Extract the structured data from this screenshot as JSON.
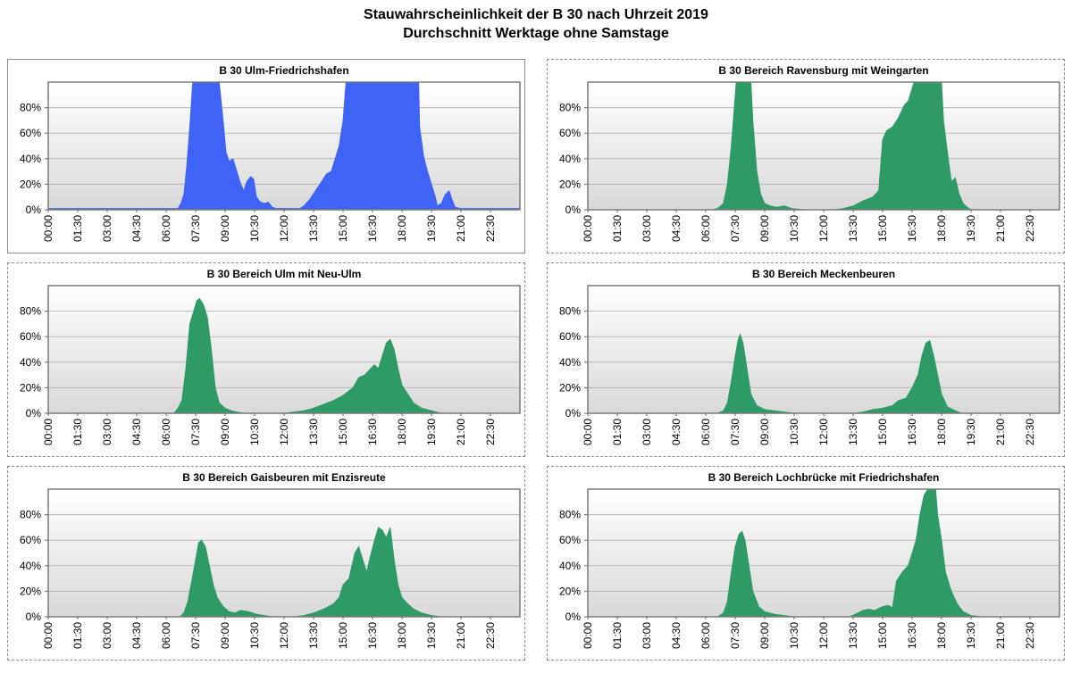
{
  "title": [
    "Stauwahrscheinlichkeit der B 30 nach Uhrzeit 2019",
    "Durchschnitt Werktage ohne Samstage"
  ],
  "colors": {
    "blue": "#3f63f5",
    "green": "#2e9a66"
  },
  "chart_data": [
    {
      "type": "area",
      "title": "B 30 Ulm-Friedrichshafen",
      "color": "#3f63f5",
      "x_ticks": [
        "00:00",
        "01:30",
        "03:00",
        "04:30",
        "06:00",
        "07:30",
        "09:00",
        "10:30",
        "12:00",
        "13:30",
        "15:00",
        "16:30",
        "18:00",
        "19:30",
        "21:00",
        "22:30"
      ],
      "y_ticks": [
        "0%",
        "20%",
        "40%",
        "60%",
        "80%"
      ],
      "x_unit": "hour",
      "xlim": [
        0,
        24
      ],
      "ylim": [
        0,
        100
      ],
      "grid": true,
      "points": [
        [
          0,
          1
        ],
        [
          1,
          1
        ],
        [
          2,
          1
        ],
        [
          3,
          1
        ],
        [
          4,
          1
        ],
        [
          5,
          1
        ],
        [
          6,
          1
        ],
        [
          6.6,
          1
        ],
        [
          6.75,
          5
        ],
        [
          6.9,
          12
        ],
        [
          7.05,
          35
        ],
        [
          7.2,
          65
        ],
        [
          7.35,
          100
        ],
        [
          8.7,
          100
        ],
        [
          8.9,
          70
        ],
        [
          9.05,
          45
        ],
        [
          9.2,
          38
        ],
        [
          9.4,
          40
        ],
        [
          9.6,
          30
        ],
        [
          9.8,
          20
        ],
        [
          9.95,
          15
        ],
        [
          10.1,
          22
        ],
        [
          10.3,
          26
        ],
        [
          10.45,
          24
        ],
        [
          10.6,
          10
        ],
        [
          10.8,
          6
        ],
        [
          11,
          5
        ],
        [
          11.2,
          6
        ],
        [
          11.4,
          2
        ],
        [
          11.6,
          1
        ],
        [
          12,
          1
        ],
        [
          12.8,
          1
        ],
        [
          13.0,
          3
        ],
        [
          13.3,
          8
        ],
        [
          13.6,
          15
        ],
        [
          13.9,
          22
        ],
        [
          14.15,
          28
        ],
        [
          14.4,
          30
        ],
        [
          14.6,
          40
        ],
        [
          14.8,
          50
        ],
        [
          15.0,
          70
        ],
        [
          15.15,
          100
        ],
        [
          18.85,
          100
        ],
        [
          18.9,
          65
        ],
        [
          19.1,
          42
        ],
        [
          19.3,
          30
        ],
        [
          19.5,
          20
        ],
        [
          19.7,
          10
        ],
        [
          19.8,
          3
        ],
        [
          20,
          5
        ],
        [
          20.2,
          12
        ],
        [
          20.4,
          15
        ],
        [
          20.55,
          8
        ],
        [
          20.7,
          2
        ],
        [
          21,
          1
        ],
        [
          22,
          1
        ],
        [
          23,
          1
        ],
        [
          24,
          1
        ]
      ]
    },
    {
      "type": "area",
      "title": "B 30 Bereich Ravensburg mit Weingarten",
      "color": "#2e9a66",
      "x_ticks": [
        "00:00",
        "01:30",
        "03:00",
        "04:30",
        "06:00",
        "07:30",
        "09:00",
        "10:30",
        "12:00",
        "13:30",
        "15:00",
        "16:30",
        "18:00",
        "19:30",
        "21:00",
        "22:30"
      ],
      "y_ticks": [
        "0%",
        "20%",
        "40%",
        "60%",
        "80%"
      ],
      "x_unit": "hour",
      "xlim": [
        0,
        24
      ],
      "ylim": [
        0,
        100
      ],
      "grid": true,
      "points": [
        [
          0,
          0
        ],
        [
          6.3,
          0
        ],
        [
          6.6,
          1
        ],
        [
          6.9,
          5
        ],
        [
          7.1,
          20
        ],
        [
          7.3,
          50
        ],
        [
          7.45,
          80
        ],
        [
          7.55,
          100
        ],
        [
          8.3,
          100
        ],
        [
          8.4,
          70
        ],
        [
          8.6,
          30
        ],
        [
          8.8,
          12
        ],
        [
          9.0,
          5
        ],
        [
          9.3,
          3
        ],
        [
          9.6,
          2
        ],
        [
          10.0,
          3
        ],
        [
          10.4,
          1
        ],
        [
          11,
          0
        ],
        [
          12.5,
          0
        ],
        [
          13.0,
          1
        ],
        [
          13.5,
          3
        ],
        [
          14,
          7
        ],
        [
          14.5,
          10
        ],
        [
          14.8,
          15
        ],
        [
          15.0,
          55
        ],
        [
          15.2,
          62
        ],
        [
          15.5,
          65
        ],
        [
          15.8,
          72
        ],
        [
          16.1,
          82
        ],
        [
          16.3,
          85
        ],
        [
          16.5,
          95
        ],
        [
          16.6,
          100
        ],
        [
          18.0,
          100
        ],
        [
          18.1,
          70
        ],
        [
          18.3,
          45
        ],
        [
          18.5,
          22
        ],
        [
          18.7,
          25
        ],
        [
          18.9,
          12
        ],
        [
          19.1,
          5
        ],
        [
          19.3,
          2
        ],
        [
          19.5,
          0
        ],
        [
          24,
          0
        ]
      ]
    },
    {
      "type": "area",
      "title": "B 30 Bereich Ulm mit Neu-Ulm",
      "color": "#2e9a66",
      "x_ticks": [
        "00:00",
        "01:30",
        "03:00",
        "04:30",
        "06:00",
        "07:30",
        "09:00",
        "10:30",
        "12:00",
        "13:30",
        "15:00",
        "16:30",
        "18:00",
        "19:30",
        "21:00",
        "22:30"
      ],
      "y_ticks": [
        "0%",
        "20%",
        "40%",
        "60%",
        "80%"
      ],
      "x_unit": "hour",
      "xlim": [
        0,
        24
      ],
      "ylim": [
        0,
        100
      ],
      "grid": true,
      "points": [
        [
          0,
          0
        ],
        [
          6.4,
          0
        ],
        [
          6.6,
          4
        ],
        [
          6.8,
          10
        ],
        [
          7.0,
          35
        ],
        [
          7.2,
          70
        ],
        [
          7.4,
          80
        ],
        [
          7.55,
          88
        ],
        [
          7.7,
          90
        ],
        [
          7.9,
          85
        ],
        [
          8.1,
          75
        ],
        [
          8.3,
          50
        ],
        [
          8.5,
          20
        ],
        [
          8.7,
          8
        ],
        [
          9.0,
          4
        ],
        [
          9.3,
          2
        ],
        [
          9.6,
          1
        ],
        [
          10,
          0
        ],
        [
          12,
          0
        ],
        [
          12.5,
          1
        ],
        [
          13,
          2
        ],
        [
          13.5,
          4
        ],
        [
          14,
          7
        ],
        [
          14.5,
          10
        ],
        [
          15,
          14
        ],
        [
          15.5,
          20
        ],
        [
          15.8,
          28
        ],
        [
          16.1,
          30
        ],
        [
          16.4,
          35
        ],
        [
          16.6,
          38
        ],
        [
          16.8,
          35
        ],
        [
          17.0,
          45
        ],
        [
          17.2,
          55
        ],
        [
          17.4,
          58
        ],
        [
          17.6,
          50
        ],
        [
          17.8,
          35
        ],
        [
          18,
          22
        ],
        [
          18.3,
          15
        ],
        [
          18.6,
          8
        ],
        [
          19,
          4
        ],
        [
          19.5,
          2
        ],
        [
          20,
          0
        ],
        [
          24,
          0
        ]
      ]
    },
    {
      "type": "area",
      "title": "B 30 Bereich Meckenbeuren",
      "color": "#2e9a66",
      "x_ticks": [
        "00:00",
        "01:30",
        "03:00",
        "04:30",
        "06:00",
        "07:30",
        "09:00",
        "10:30",
        "12:00",
        "13:30",
        "15:00",
        "16:30",
        "18:00",
        "19:30",
        "21:00",
        "22:30"
      ],
      "y_ticks": [
        "0%",
        "20%",
        "40%",
        "60%",
        "80%"
      ],
      "x_unit": "hour",
      "xlim": [
        0,
        24
      ],
      "ylim": [
        0,
        100
      ],
      "grid": true,
      "points": [
        [
          0,
          0
        ],
        [
          6.6,
          0
        ],
        [
          6.9,
          2
        ],
        [
          7.1,
          8
        ],
        [
          7.3,
          25
        ],
        [
          7.5,
          45
        ],
        [
          7.65,
          58
        ],
        [
          7.75,
          62
        ],
        [
          7.9,
          55
        ],
        [
          8.1,
          35
        ],
        [
          8.3,
          15
        ],
        [
          8.6,
          6
        ],
        [
          9,
          3
        ],
        [
          9.5,
          2
        ],
        [
          10,
          1
        ],
        [
          10.5,
          0
        ],
        [
          13.5,
          0
        ],
        [
          14,
          1
        ],
        [
          14.5,
          3
        ],
        [
          15,
          4
        ],
        [
          15.5,
          6
        ],
        [
          15.8,
          10
        ],
        [
          16.2,
          12
        ],
        [
          16.5,
          20
        ],
        [
          16.8,
          30
        ],
        [
          17.0,
          45
        ],
        [
          17.2,
          55
        ],
        [
          17.4,
          57
        ],
        [
          17.6,
          45
        ],
        [
          17.8,
          30
        ],
        [
          18,
          15
        ],
        [
          18.3,
          5
        ],
        [
          18.7,
          2
        ],
        [
          19,
          0
        ],
        [
          24,
          0
        ]
      ]
    },
    {
      "type": "area",
      "title": "B 30 Bereich Gaisbeuren mit Enzisreute",
      "color": "#2e9a66",
      "x_ticks": [
        "00:00",
        "01:30",
        "03:00",
        "04:30",
        "06:00",
        "07:30",
        "09:00",
        "10:30",
        "12:00",
        "13:30",
        "15:00",
        "16:30",
        "18:00",
        "19:30",
        "21:00",
        "22:30"
      ],
      "y_ticks": [
        "0%",
        "20%",
        "40%",
        "60%",
        "80%"
      ],
      "x_unit": "hour",
      "xlim": [
        0,
        24
      ],
      "ylim": [
        0,
        100
      ],
      "grid": true,
      "points": [
        [
          0,
          0
        ],
        [
          6.7,
          0
        ],
        [
          6.9,
          3
        ],
        [
          7.1,
          12
        ],
        [
          7.3,
          28
        ],
        [
          7.5,
          45
        ],
        [
          7.65,
          58
        ],
        [
          7.8,
          60
        ],
        [
          8.0,
          55
        ],
        [
          8.2,
          40
        ],
        [
          8.4,
          25
        ],
        [
          8.6,
          15
        ],
        [
          8.9,
          8
        ],
        [
          9.2,
          4
        ],
        [
          9.5,
          3
        ],
        [
          9.8,
          5
        ],
        [
          10.2,
          4
        ],
        [
          10.6,
          2
        ],
        [
          11,
          1
        ],
        [
          11.5,
          0
        ],
        [
          12.5,
          0
        ],
        [
          13,
          1
        ],
        [
          13.5,
          3
        ],
        [
          14,
          6
        ],
        [
          14.5,
          10
        ],
        [
          14.8,
          15
        ],
        [
          15.0,
          25
        ],
        [
          15.3,
          30
        ],
        [
          15.6,
          50
        ],
        [
          15.8,
          55
        ],
        [
          16.0,
          45
        ],
        [
          16.2,
          35
        ],
        [
          16.4,
          48
        ],
        [
          16.6,
          60
        ],
        [
          16.8,
          70
        ],
        [
          17.0,
          68
        ],
        [
          17.2,
          62
        ],
        [
          17.4,
          70
        ],
        [
          17.6,
          45
        ],
        [
          17.8,
          25
        ],
        [
          18.0,
          15
        ],
        [
          18.3,
          10
        ],
        [
          18.6,
          6
        ],
        [
          19,
          3
        ],
        [
          19.5,
          1
        ],
        [
          20,
          0
        ],
        [
          24,
          0
        ]
      ]
    },
    {
      "type": "area",
      "title": "B 30 Bereich Lochbrücke mit Friedrichshafen",
      "color": "#2e9a66",
      "x_ticks": [
        "00:00",
        "01:30",
        "03:00",
        "04:30",
        "06:00",
        "07:30",
        "09:00",
        "10:30",
        "12:00",
        "13:30",
        "15:00",
        "16:30",
        "18:00",
        "19:30",
        "21:00",
        "22:30"
      ],
      "y_ticks": [
        "0%",
        "20%",
        "40%",
        "60%",
        "80%"
      ],
      "x_unit": "hour",
      "xlim": [
        0,
        24
      ],
      "ylim": [
        0,
        100
      ],
      "grid": true,
      "points": [
        [
          0,
          0
        ],
        [
          6.6,
          0
        ],
        [
          6.9,
          3
        ],
        [
          7.1,
          12
        ],
        [
          7.3,
          35
        ],
        [
          7.5,
          55
        ],
        [
          7.7,
          65
        ],
        [
          7.85,
          67
        ],
        [
          8.0,
          60
        ],
        [
          8.2,
          40
        ],
        [
          8.4,
          20
        ],
        [
          8.7,
          8
        ],
        [
          9.0,
          4
        ],
        [
          9.5,
          2
        ],
        [
          10,
          1
        ],
        [
          10.5,
          0
        ],
        [
          13.3,
          0
        ],
        [
          13.6,
          2
        ],
        [
          14,
          5
        ],
        [
          14.3,
          6
        ],
        [
          14.6,
          5
        ],
        [
          15,
          8
        ],
        [
          15.3,
          9
        ],
        [
          15.5,
          7
        ],
        [
          15.7,
          28
        ],
        [
          16.0,
          35
        ],
        [
          16.3,
          40
        ],
        [
          16.5,
          50
        ],
        [
          16.7,
          60
        ],
        [
          16.9,
          80
        ],
        [
          17.1,
          95
        ],
        [
          17.3,
          100
        ],
        [
          17.7,
          100
        ],
        [
          17.8,
          80
        ],
        [
          18.0,
          60
        ],
        [
          18.2,
          35
        ],
        [
          18.5,
          20
        ],
        [
          18.8,
          10
        ],
        [
          19.1,
          4
        ],
        [
          19.5,
          1
        ],
        [
          20,
          0
        ],
        [
          24,
          0
        ]
      ]
    }
  ]
}
